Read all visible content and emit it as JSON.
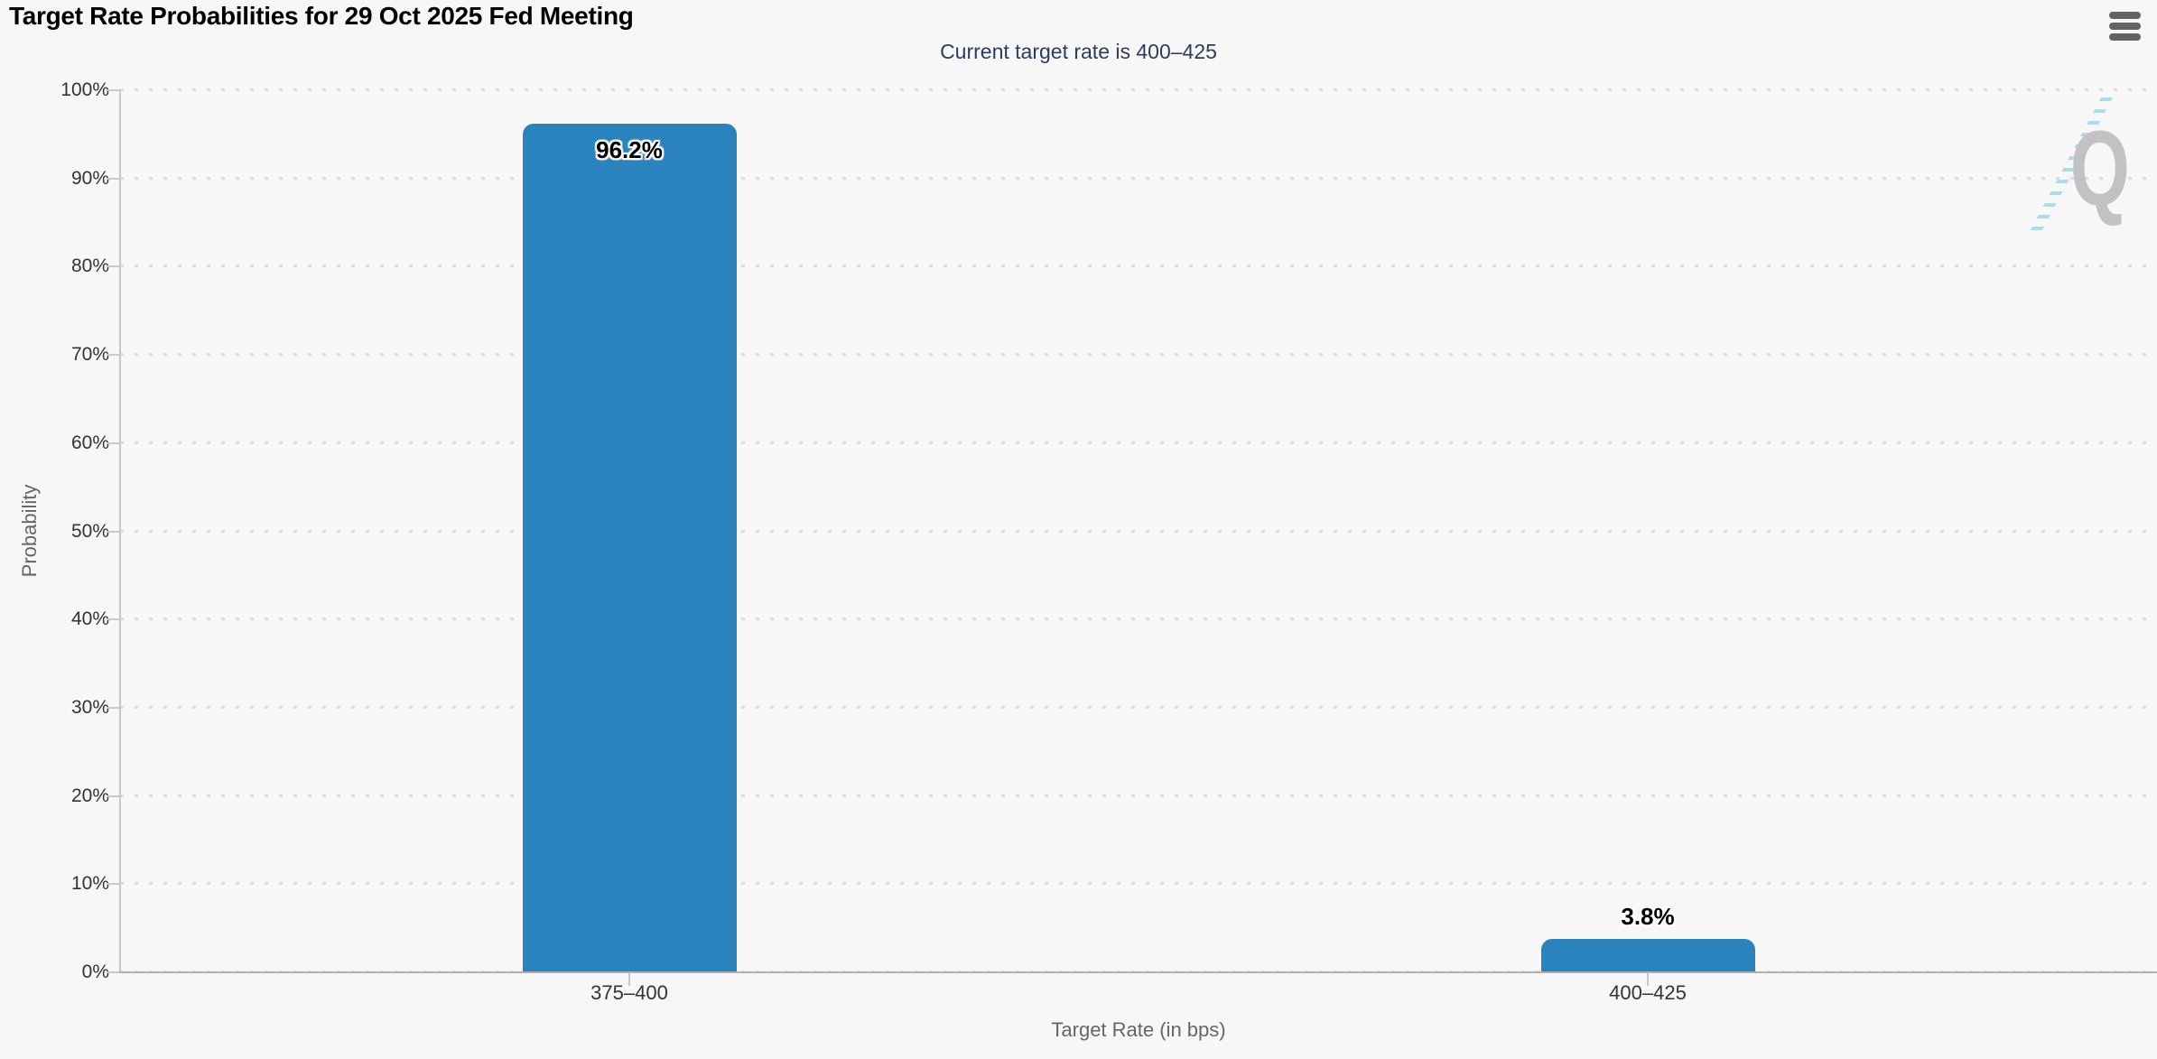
{
  "chart_data": {
    "type": "bar",
    "title": "Target Rate Probabilities for 29 Oct 2025 Fed Meeting",
    "subtitle": "Current target rate is 400–425",
    "categories": [
      "375–400",
      "400–425"
    ],
    "values": [
      96.2,
      3.8
    ],
    "data_labels": [
      "96.2%",
      "3.8%"
    ],
    "xlabel": "Target Rate (in bps)",
    "ylabel": "Probability",
    "ylim": [
      0,
      100
    ],
    "ytick_step": 10,
    "ytick_labels": [
      "0%",
      "10%",
      "20%",
      "30%",
      "40%",
      "50%",
      "60%",
      "70%",
      "80%",
      "90%",
      "100%"
    ],
    "grid": "horizontal-dotted",
    "legend": "none",
    "bar_color": "#2b83bd",
    "watermark_letter": "Q"
  },
  "icons": {
    "menu": "hamburger-icon",
    "watermark": "q-logo-with-dashed-slash"
  },
  "colors": {
    "background": "#f7f7f7",
    "bar": "#2b83bd",
    "title_text": "#000000",
    "subtitle_text": "#2c3c60",
    "axis_tick_text": "#333333",
    "axis_title_text": "#666666",
    "grid_dot": "#dcdcdc",
    "axis_line": "#b0b0b0",
    "hamburger": "#636363",
    "watermark_q": "#c2c2c2",
    "watermark_dash": "#9fd6ee"
  }
}
